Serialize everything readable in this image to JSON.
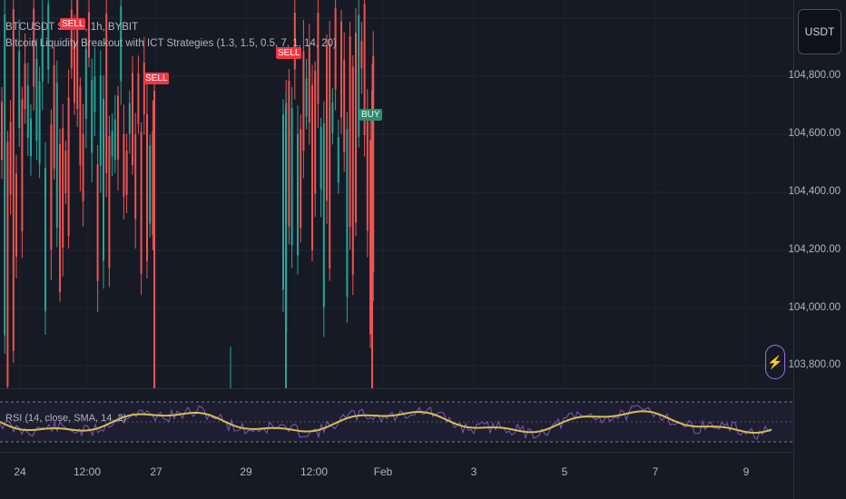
{
  "legend": {
    "symbol_line": "BTCUSDT SPOT, 1h, BYBIT",
    "indicator_line": "Bitcoin Liquidity Breakout with ICT Strategies (1.3, 1.5, 0.5, 7, 1, 14, 20)",
    "rsi_line": "RSI (14, close, SMA, 14, 2)"
  },
  "price_scale": {
    "currency": "USDT",
    "labels": [
      "104,800.00",
      "104,600.00",
      "104,400.00",
      "104,200.00",
      "104,000.00",
      "103,800.00"
    ]
  },
  "time_axis": {
    "labels": [
      "24",
      "12:00",
      "27",
      "29",
      "12:00",
      "Feb",
      "3",
      "5",
      "7",
      "9"
    ]
  },
  "signals": [
    {
      "label": "SELL",
      "type": "sell"
    },
    {
      "label": "SELL",
      "type": "sell"
    },
    {
      "label": "SELL",
      "type": "sell"
    },
    {
      "label": "BUY",
      "type": "buy"
    }
  ],
  "colors": {
    "background": "#161a25",
    "up_candle": "#26a69a",
    "down_candle": "#ef5350",
    "rsi_line": "#7e57c2",
    "rsi_ma": "#d4c04a",
    "sell_badge": "#f23645",
    "buy_badge": "#2e8b6e"
  },
  "icons": {
    "alert": "lightning-bolt-icon"
  }
}
